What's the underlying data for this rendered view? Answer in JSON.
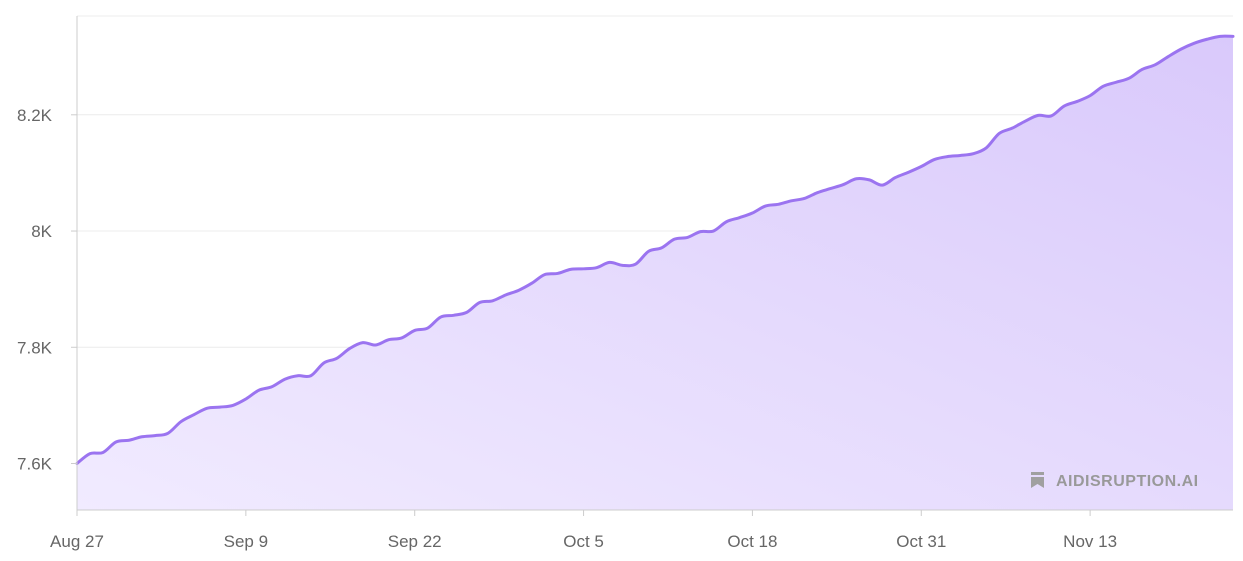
{
  "chart_data": {
    "type": "area",
    "title": "",
    "xlabel": "",
    "ylabel": "",
    "x_ticks": [
      "Aug 27",
      "Sep 9",
      "Sep 22",
      "Oct 5",
      "Oct 18",
      "Oct 31",
      "Nov 13"
    ],
    "y_ticks": [
      {
        "value": 7600,
        "label": "7.6K"
      },
      {
        "value": 7800,
        "label": "7.8K"
      },
      {
        "value": 8000,
        "label": "8K"
      },
      {
        "value": 8200,
        "label": "8.2K"
      }
    ],
    "ylim": [
      7520,
      8370
    ],
    "xlim_days": [
      0,
      89
    ],
    "grid": true,
    "legend": "none",
    "colors": {
      "line": "#9b74f0",
      "fill_top": "#d9c9fb",
      "fill_bottom": "#f1ebff",
      "grid": "#ececec",
      "axis": "#cccccc"
    },
    "series": [
      {
        "start_date": "Aug 27",
        "x": [
          0,
          1,
          2,
          3,
          4,
          5,
          6,
          7,
          8,
          9,
          10,
          11,
          12,
          13,
          14,
          15,
          16,
          17,
          18,
          19,
          20,
          21,
          22,
          23,
          24,
          25,
          26,
          27,
          28,
          29,
          30,
          31,
          32,
          33,
          34,
          35,
          36,
          37,
          38,
          39,
          40,
          41,
          42,
          43,
          44,
          45,
          46,
          47,
          48,
          49,
          50,
          51,
          52,
          53,
          54,
          55,
          56,
          57,
          58,
          59,
          60,
          61,
          62,
          63,
          64,
          65,
          66,
          67,
          68,
          69,
          70,
          71,
          72,
          73,
          74,
          75,
          76,
          77,
          78,
          79,
          80,
          81,
          82,
          83,
          84,
          85,
          86,
          87,
          88,
          89
        ],
        "values": [
          7600,
          7617,
          7619,
          7637,
          7640,
          7646,
          7648,
          7652,
          7672,
          7684,
          7695,
          7697,
          7700,
          7711,
          7726,
          7732,
          7745,
          7751,
          7751,
          7773,
          7781,
          7798,
          7808,
          7804,
          7813,
          7816,
          7829,
          7833,
          7852,
          7855,
          7860,
          7877,
          7880,
          7890,
          7898,
          7910,
          7925,
          7927,
          7934,
          7935,
          7937,
          7946,
          7941,
          7943,
          7965,
          7971,
          7986,
          7989,
          7999,
          8000,
          8016,
          8023,
          8031,
          8043,
          8046,
          8052,
          8056,
          8066,
          8073,
          8080,
          8090,
          8088,
          8079,
          8092,
          8101,
          8111,
          8123,
          8128,
          8130,
          8133,
          8143,
          8168,
          8177,
          8189,
          8199,
          8198,
          8215,
          8223,
          8233,
          8249,
          8256,
          8263,
          8278,
          8286,
          8300,
          8313,
          8323,
          8330,
          8335,
          8335
        ]
      }
    ]
  },
  "watermark": {
    "text": "AIDISRUPTION.AI",
    "icon": "bookmark-icon"
  }
}
